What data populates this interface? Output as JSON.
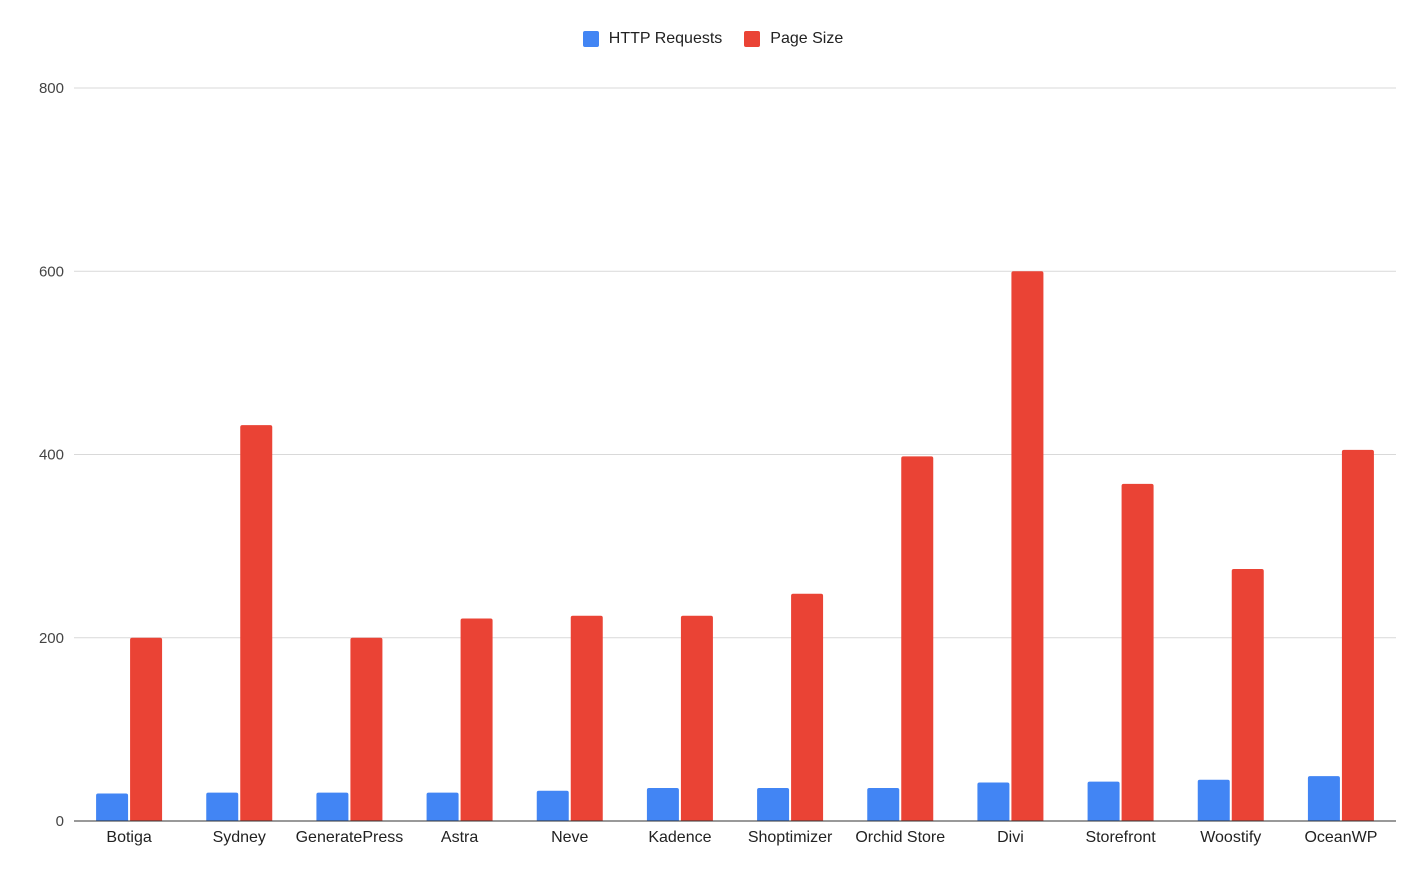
{
  "chart_data": {
    "type": "bar",
    "categories": [
      "Botiga",
      "Sydney",
      "GeneratePress",
      "Astra",
      "Neve",
      "Kadence",
      "Shoptimizer",
      "Orchid Store",
      "Divi",
      "Storefront",
      "Woostify",
      "OceanWP"
    ],
    "series": [
      {
        "name": "HTTP Requests",
        "color": "#4285f4",
        "values": [
          30,
          31,
          31,
          31,
          33,
          36,
          36,
          36,
          42,
          43,
          45,
          49
        ]
      },
      {
        "name": "Page Size",
        "color": "#ea4335",
        "values": [
          200,
          432,
          200,
          221,
          224,
          224,
          248,
          398,
          600,
          368,
          275,
          405
        ]
      }
    ],
    "ylim": [
      0,
      800
    ],
    "yticks": [
      0,
      200,
      400,
      600,
      800
    ],
    "grid": true,
    "legend": "top-center",
    "title": "",
    "xlabel": "",
    "ylabel": ""
  }
}
